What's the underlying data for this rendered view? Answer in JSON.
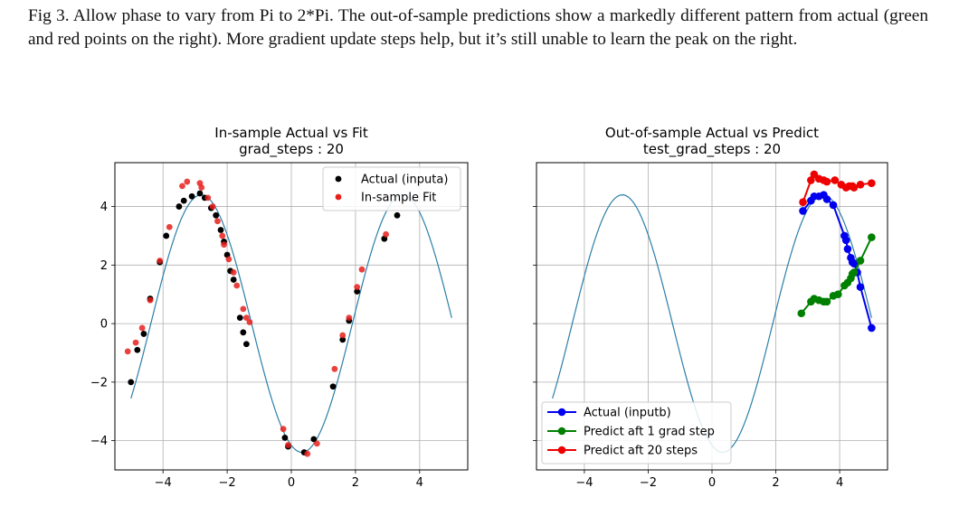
{
  "caption": "Fig 3. Allow phase to vary from Pi to 2*Pi. The out-of-sample predictions show a markedly different pattern from actual (green and red points on the right). More gradient update steps help, but it’s still unable to learn the peak on the right.",
  "chart_data": [
    {
      "type": "scatter",
      "title": "In-sample Actual vs Fit",
      "subtitle": "grad_steps : 20",
      "xlim": [
        -5.5,
        5.5
      ],
      "ylim": [
        -5.0,
        5.5
      ],
      "xticks": [
        -4,
        -2,
        0,
        2,
        4
      ],
      "yticks": [
        -4,
        -2,
        0,
        2,
        4
      ],
      "xtick_labels": [
        "−4",
        "−2",
        "0",
        "2",
        "4"
      ],
      "ytick_labels": [
        "−4",
        "−2",
        "0",
        "2",
        "4"
      ],
      "grid": true,
      "legend_position": "top-right",
      "curve": {
        "amplitude": 4.4,
        "phase": 4.38,
        "x_range": [
          -5,
          5
        ],
        "color": "#2c7fa8"
      },
      "series": [
        {
          "name": "Actual (inputa)",
          "color": "#000000",
          "points": [
            [
              -5.0,
              -2.0
            ],
            [
              -4.8,
              -0.9
            ],
            [
              -4.6,
              -0.35
            ],
            [
              -4.4,
              0.85
            ],
            [
              -4.1,
              2.1
            ],
            [
              -3.9,
              3.0
            ],
            [
              -3.5,
              4.0
            ],
            [
              -3.35,
              4.2
            ],
            [
              -3.1,
              4.35
            ],
            [
              -2.85,
              4.45
            ],
            [
              -2.7,
              4.3
            ],
            [
              -2.5,
              3.95
            ],
            [
              -2.35,
              3.7
            ],
            [
              -2.2,
              3.2
            ],
            [
              -2.1,
              2.8
            ],
            [
              -2.0,
              2.35
            ],
            [
              -1.9,
              1.8
            ],
            [
              -1.8,
              1.5
            ],
            [
              -1.6,
              0.2
            ],
            [
              -1.5,
              -0.3
            ],
            [
              -1.4,
              -0.7
            ],
            [
              -0.2,
              -3.9
            ],
            [
              -0.1,
              -4.2
            ],
            [
              0.4,
              -4.4
            ],
            [
              0.7,
              -3.95
            ],
            [
              1.3,
              -2.15
            ],
            [
              1.6,
              -0.55
            ],
            [
              1.8,
              0.1
            ],
            [
              2.05,
              1.1
            ],
            [
              2.9,
              2.9
            ],
            [
              3.3,
              3.7
            ]
          ]
        },
        {
          "name": "In-sample Fit",
          "color": "#e8201c",
          "points": [
            [
              -5.1,
              -0.95
            ],
            [
              -4.85,
              -0.65
            ],
            [
              -4.65,
              -0.15
            ],
            [
              -4.4,
              0.8
            ],
            [
              -4.1,
              2.15
            ],
            [
              -3.8,
              3.3
            ],
            [
              -3.4,
              4.7
            ],
            [
              -3.25,
              4.85
            ],
            [
              -2.85,
              4.8
            ],
            [
              -2.8,
              4.65
            ],
            [
              -2.6,
              4.3
            ],
            [
              -2.45,
              4.0
            ],
            [
              -2.3,
              3.5
            ],
            [
              -2.15,
              3.0
            ],
            [
              -2.1,
              2.7
            ],
            [
              -1.95,
              2.2
            ],
            [
              -1.8,
              1.75
            ],
            [
              -1.7,
              1.3
            ],
            [
              -1.5,
              0.5
            ],
            [
              -1.4,
              0.2
            ],
            [
              -1.3,
              0.05
            ],
            [
              -0.25,
              -3.6
            ],
            [
              -0.1,
              -4.15
            ],
            [
              0.5,
              -4.45
            ],
            [
              0.8,
              -4.1
            ],
            [
              1.35,
              -1.55
            ],
            [
              1.6,
              -0.4
            ],
            [
              1.8,
              0.2
            ],
            [
              2.05,
              1.25
            ],
            [
              2.2,
              1.85
            ],
            [
              2.95,
              3.05
            ]
          ]
        }
      ]
    },
    {
      "type": "line",
      "title": "Out-of-sample Actual vs Predict",
      "subtitle": "test_grad_steps : 20",
      "xlim": [
        -5.5,
        5.5
      ],
      "ylim": [
        -5.0,
        5.5
      ],
      "xticks": [
        -4,
        -2,
        0,
        2,
        4
      ],
      "yticks": [
        -4,
        -2,
        0,
        2,
        4
      ],
      "xtick_labels": [
        "−4",
        "−2",
        "0",
        "2",
        "4"
      ],
      "grid": true,
      "legend_position": "bottom-left",
      "curve": {
        "amplitude": 4.4,
        "phase": 4.38,
        "x_range": [
          -5,
          5
        ],
        "color": "#2c7fa8"
      },
      "series": [
        {
          "name": "Actual (inputb)",
          "color": "#0000ee",
          "points": [
            [
              2.85,
              3.85
            ],
            [
              3.1,
              4.2
            ],
            [
              3.2,
              4.35
            ],
            [
              3.35,
              4.35
            ],
            [
              3.5,
              4.4
            ],
            [
              3.6,
              4.25
            ],
            [
              3.8,
              4.05
            ],
            [
              4.15,
              3.0
            ],
            [
              4.2,
              2.85
            ],
            [
              4.25,
              2.55
            ],
            [
              4.35,
              2.25
            ],
            [
              4.4,
              2.1
            ],
            [
              4.45,
              2.05
            ],
            [
              4.55,
              1.75
            ],
            [
              4.65,
              1.25
            ],
            [
              5.0,
              -0.15
            ]
          ]
        },
        {
          "name": "Predict aft 1 grad step",
          "color": "#008000",
          "points": [
            [
              2.8,
              0.35
            ],
            [
              3.1,
              0.75
            ],
            [
              3.2,
              0.85
            ],
            [
              3.35,
              0.8
            ],
            [
              3.5,
              0.75
            ],
            [
              3.6,
              0.75
            ],
            [
              3.8,
              0.95
            ],
            [
              3.95,
              1.0
            ],
            [
              4.15,
              1.3
            ],
            [
              4.25,
              1.4
            ],
            [
              4.35,
              1.55
            ],
            [
              4.4,
              1.7
            ],
            [
              4.45,
              1.75
            ],
            [
              4.65,
              2.15
            ],
            [
              5.0,
              2.95
            ]
          ]
        },
        {
          "name": "Predict aft 20 steps",
          "color": "#ee0000",
          "points": [
            [
              2.85,
              4.15
            ],
            [
              3.1,
              4.9
            ],
            [
              3.2,
              5.1
            ],
            [
              3.35,
              4.95
            ],
            [
              3.5,
              4.9
            ],
            [
              3.6,
              4.85
            ],
            [
              3.85,
              4.9
            ],
            [
              4.05,
              4.75
            ],
            [
              4.2,
              4.65
            ],
            [
              4.3,
              4.7
            ],
            [
              4.4,
              4.7
            ],
            [
              4.45,
              4.65
            ],
            [
              4.65,
              4.75
            ],
            [
              5.0,
              4.8
            ]
          ]
        }
      ]
    }
  ]
}
